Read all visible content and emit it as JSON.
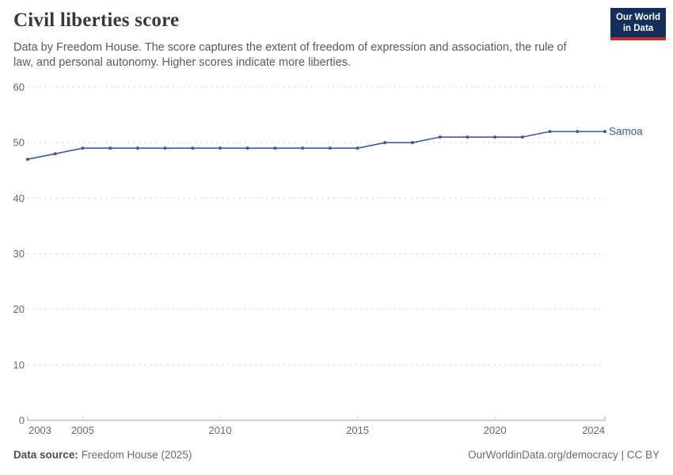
{
  "header": {
    "title": "Civil liberties score",
    "subtitle": "Data by Freedom House. The score captures the extent of freedom of expression and association, the rule of law, and personal autonomy. Higher scores indicate more liberties."
  },
  "logo": {
    "line1": "Our World",
    "line2": "in Data",
    "bg_color": "#12305a",
    "bar_color": "#c02f2f"
  },
  "chart_data": {
    "type": "line",
    "title": "Civil liberties score",
    "x": [
      2003,
      2004,
      2005,
      2006,
      2007,
      2008,
      2009,
      2010,
      2011,
      2012,
      2013,
      2014,
      2015,
      2016,
      2017,
      2018,
      2019,
      2020,
      2021,
      2022,
      2023,
      2024
    ],
    "series": [
      {
        "name": "Samoa",
        "color": "#3d5c9a",
        "values": [
          47,
          48,
          49,
          49,
          49,
          49,
          49,
          49,
          49,
          49,
          49,
          49,
          49,
          50,
          50,
          51,
          51,
          51,
          51,
          52,
          52,
          52
        ]
      }
    ],
    "xlabel": "",
    "ylabel": "",
    "ylim": [
      0,
      60
    ],
    "yticks": [
      0,
      10,
      20,
      30,
      40,
      50,
      60
    ],
    "xticks": [
      2003,
      2005,
      2010,
      2015,
      2020,
      2024
    ],
    "grid": "horizontal-dashed",
    "legend": "line-end-label"
  },
  "footer": {
    "source_label": "Data source:",
    "source_value": "Freedom House (2025)",
    "rights": "OurWorldinData.org/democracy | CC BY"
  },
  "colors": {
    "accent_line": "#3d5c9a",
    "grid": "#dadada",
    "axis": "#a6a6a6",
    "minor_tick": "#cfcfcf",
    "tick_text": "#696969"
  }
}
